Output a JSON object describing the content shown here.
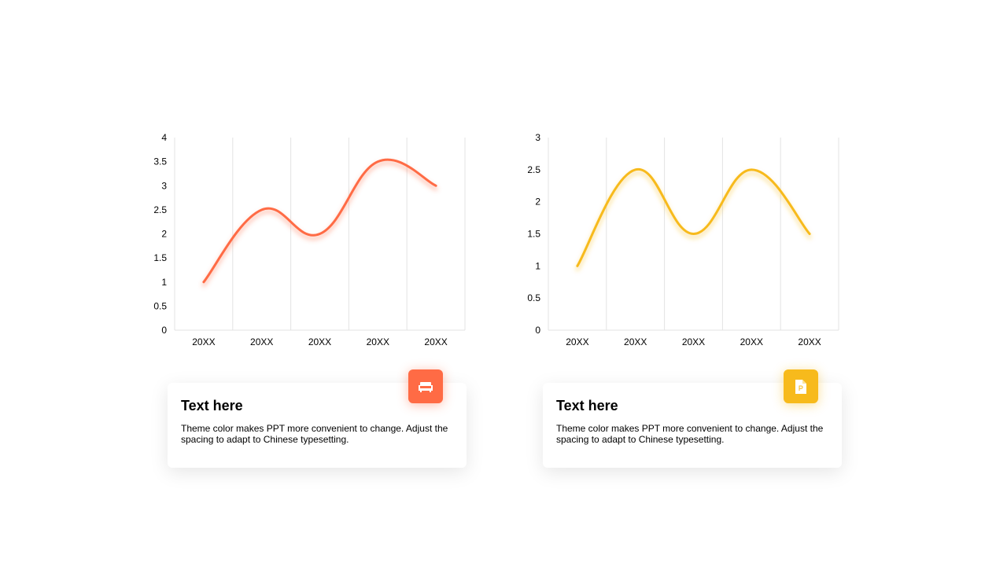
{
  "colors": {
    "orange": "#FF6B45",
    "yellow": "#F7BA1C",
    "grid": "#E3E3E3"
  },
  "chart_data": [
    {
      "type": "line",
      "smooth": true,
      "color": "#FF6B45",
      "categories": [
        "20XX",
        "20XX",
        "20XX",
        "20XX",
        "20XX"
      ],
      "values": [
        1,
        2.5,
        2,
        3.5,
        3
      ],
      "yticks": [
        "0",
        "0.5",
        "1",
        "1.5",
        "2",
        "2.5",
        "3",
        "3.5",
        "4"
      ],
      "ylim": [
        0,
        4
      ],
      "grid": "vertical",
      "title": "",
      "xlabel": "",
      "ylabel": ""
    },
    {
      "type": "line",
      "smooth": true,
      "color": "#F7BA1C",
      "categories": [
        "20XX",
        "20XX",
        "20XX",
        "20XX",
        "20XX"
      ],
      "values": [
        1,
        2.5,
        1.5,
        2.5,
        1.5
      ],
      "yticks": [
        "0",
        "0.5",
        "1",
        "1.5",
        "2",
        "2.5",
        "3"
      ],
      "ylim": [
        0,
        3
      ],
      "grid": "vertical",
      "title": "",
      "xlabel": "",
      "ylabel": ""
    }
  ],
  "cards": [
    {
      "title": "Text here",
      "description": "Theme  color makes PPT more convenient to change. Adjust the spacing to adapt to Chinese typesetting.",
      "icon": "sofa-icon",
      "color": "#FF6B45"
    },
    {
      "title": "Text here",
      "description": "Theme  color makes PPT more convenient to change. Adjust the spacing to adapt to Chinese typesetting.",
      "icon": "document-icon",
      "color": "#F7BA1C"
    }
  ]
}
